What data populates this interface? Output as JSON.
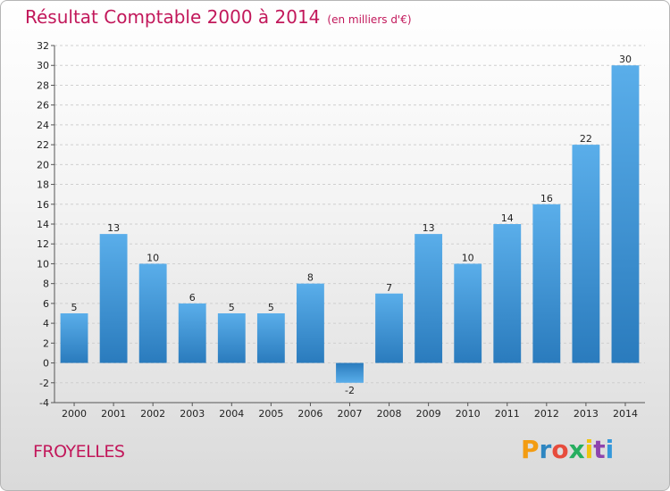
{
  "header": {
    "title": "Résultat Comptable 2000 à 2014",
    "subtitle": "(en milliers d'€)"
  },
  "footer": {
    "commune": "FROYELLES",
    "logo_letters": [
      "P",
      "r",
      "o",
      "x",
      "i",
      "t",
      "i"
    ],
    "logo_colors": [
      "#f39c12",
      "#2e86c1",
      "#e74c3c",
      "#27ae60",
      "#f1c40f",
      "#8e44ad",
      "#3498db"
    ]
  },
  "chart_data": {
    "type": "bar",
    "title": "Résultat Comptable 2000 à 2014",
    "subtitle": "(en milliers d'€)",
    "categories": [
      "2000",
      "2001",
      "2002",
      "2003",
      "2004",
      "2005",
      "2006",
      "2007",
      "2008",
      "2009",
      "2010",
      "2011",
      "2012",
      "2013",
      "2014"
    ],
    "values": [
      5,
      13,
      10,
      6,
      5,
      5,
      8,
      -2,
      7,
      13,
      10,
      14,
      16,
      22,
      30
    ],
    "ylim": [
      -4,
      32
    ],
    "yticks": [
      -4,
      -2,
      0,
      2,
      4,
      6,
      8,
      10,
      12,
      14,
      16,
      18,
      20,
      22,
      24,
      26,
      28,
      30,
      32
    ],
    "grid": true,
    "xlabel": "",
    "ylabel": "",
    "bar_color": "#3a8fd4"
  }
}
